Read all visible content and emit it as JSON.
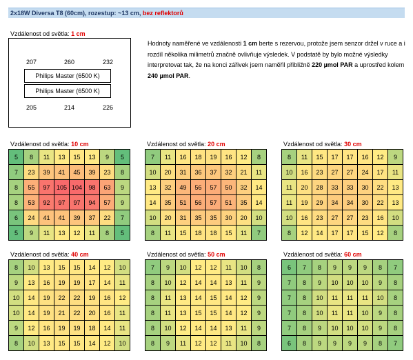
{
  "header": {
    "title": "2x18W Diversa T8 (60cm), rozestup: ~13 cm,",
    "note": "bez reflektorů"
  },
  "intro": {
    "label": "Vzdálenost od světla:",
    "distance": "1 cm",
    "top_values": [
      207,
      260,
      232
    ],
    "lamps": [
      "Philips Master (6500 K)",
      "Philips Master (6500 K)"
    ],
    "bottom_values": [
      205,
      214,
      226
    ]
  },
  "paragraph": [
    "Hodnoty naměřené ve vzdálenosti ",
    "1 cm",
    " berte s rezervou, protože jsem senzor držel v ruce a i rozdíl několika milimetrů značně ovlivňuje výsledek. V podstatě by bylo možné výsledky interpretovat tak, že na konci zářivek jsem naměřil přibližně ",
    "220 µmol PAR",
    " a uprostřed kolem ",
    "240 µmol PAR",
    "."
  ],
  "grids": [
    {
      "label": "Vzdálenost od světla:",
      "distance": "10 cm",
      "rows": [
        [
          5,
          8,
          11,
          13,
          15,
          13,
          9,
          5
        ],
        [
          7,
          23,
          39,
          41,
          45,
          39,
          23,
          8
        ],
        [
          8,
          55,
          97,
          105,
          104,
          98,
          63,
          9
        ],
        [
          8,
          53,
          92,
          97,
          97,
          94,
          57,
          9
        ],
        [
          6,
          24,
          41,
          41,
          39,
          37,
          22,
          7
        ],
        [
          5,
          9,
          11,
          13,
          12,
          11,
          8,
          5
        ]
      ]
    },
    {
      "label": "Vzdálenost od světla:",
      "distance": "20 cm",
      "rows": [
        [
          7,
          11,
          16,
          18,
          19,
          16,
          12,
          8
        ],
        [
          10,
          20,
          31,
          36,
          37,
          32,
          21,
          11
        ],
        [
          13,
          32,
          49,
          56,
          57,
          50,
          32,
          14
        ],
        [
          14,
          35,
          51,
          56,
          57,
          51,
          35,
          14
        ],
        [
          10,
          20,
          31,
          35,
          35,
          30,
          20,
          10
        ],
        [
          8,
          11,
          15,
          18,
          18,
          15,
          11,
          7
        ]
      ]
    },
    {
      "label": "Vzdálenost od světla:",
      "distance": "30 cm",
      "rows": [
        [
          8,
          11,
          15,
          17,
          17,
          16,
          12,
          9
        ],
        [
          10,
          16,
          23,
          27,
          27,
          24,
          17,
          11
        ],
        [
          11,
          20,
          28,
          33,
          33,
          30,
          22,
          13
        ],
        [
          11,
          19,
          29,
          34,
          34,
          30,
          22,
          13
        ],
        [
          10,
          16,
          23,
          27,
          27,
          23,
          16,
          10
        ],
        [
          8,
          12,
          14,
          17,
          17,
          15,
          12,
          8
        ]
      ]
    },
    {
      "label": "Vzdálenost od světla:",
      "distance": "40 cm",
      "rows": [
        [
          8,
          10,
          13,
          15,
          15,
          14,
          12,
          10
        ],
        [
          9,
          13,
          16,
          19,
          19,
          17,
          14,
          11
        ],
        [
          10,
          14,
          19,
          22,
          22,
          19,
          16,
          12
        ],
        [
          10,
          14,
          19,
          21,
          22,
          20,
          16,
          11
        ],
        [
          9,
          12,
          16,
          19,
          19,
          18,
          14,
          11
        ],
        [
          8,
          10,
          13,
          15,
          15,
          14,
          12,
          10
        ]
      ]
    },
    {
      "label": "Vzdálenost od světla:",
      "distance": "50 cm",
      "rows": [
        [
          7,
          9,
          10,
          12,
          12,
          11,
          10,
          8
        ],
        [
          8,
          10,
          12,
          14,
          14,
          13,
          11,
          9
        ],
        [
          8,
          11,
          13,
          14,
          15,
          14,
          12,
          9
        ],
        [
          8,
          11,
          13,
          15,
          15,
          14,
          12,
          9
        ],
        [
          8,
          10,
          12,
          14,
          14,
          13,
          11,
          9
        ],
        [
          8,
          9,
          11,
          12,
          12,
          11,
          10,
          8
        ]
      ]
    },
    {
      "label": "Vzdálenost od světla:",
      "distance": "60 cm",
      "rows": [
        [
          6,
          7,
          8,
          9,
          9,
          9,
          8,
          7
        ],
        [
          7,
          8,
          9,
          10,
          10,
          10,
          9,
          8
        ],
        [
          7,
          8,
          10,
          11,
          11,
          11,
          10,
          8
        ],
        [
          7,
          8,
          10,
          11,
          11,
          10,
          9,
          8
        ],
        [
          7,
          8,
          9,
          10,
          10,
          10,
          9,
          8
        ],
        [
          6,
          8,
          9,
          9,
          9,
          9,
          8,
          7
        ]
      ]
    }
  ]
}
